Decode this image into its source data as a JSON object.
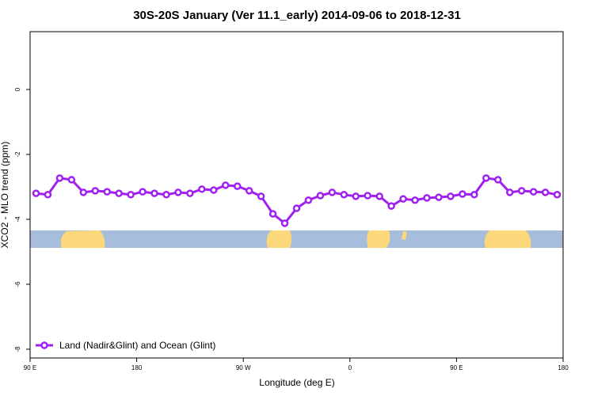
{
  "chart_data": {
    "type": "line",
    "title": "30S-20S January (Ver 11.1_early)   2014-09-06 to 2018-12-31",
    "xlabel": "Longitude (deg E)",
    "ylabel": "XCO2 - MLO trend (ppm)",
    "xlim": [
      90,
      540
    ],
    "ylim": [
      -8.27,
      1.78
    ],
    "xticks": [
      {
        "value": 90,
        "label": "90 E"
      },
      180,
      {
        "value": 270,
        "label": "90 W"
      },
      {
        "value": 360,
        "label": "0"
      },
      {
        "value": 450,
        "label": "90 E"
      },
      {
        "value": 540,
        "label": "180"
      }
    ],
    "yticks": [
      0,
      -2,
      -4,
      -6,
      -8
    ],
    "legend": "bottom-left",
    "x": [
      95,
      105,
      115,
      125,
      135,
      145,
      155,
      165,
      175,
      185,
      195,
      205,
      215,
      225,
      235,
      245,
      255,
      265,
      275,
      285,
      295,
      305,
      315,
      325,
      335,
      345,
      355,
      365,
      375,
      385,
      395,
      405,
      415,
      425,
      435,
      445,
      455,
      465,
      475,
      485,
      495,
      505,
      515,
      525,
      535
    ],
    "series": [
      {
        "name": "Land (Nadir&Glint) and Ocean (Glint)",
        "color": "#a020f0",
        "values": [
          -3.2,
          -3.24,
          -2.73,
          -2.78,
          -3.17,
          -3.12,
          -3.15,
          -3.2,
          -3.24,
          -3.15,
          -3.2,
          -3.24,
          -3.17,
          -3.2,
          -3.07,
          -3.1,
          -2.95,
          -2.98,
          -3.12,
          -3.29,
          -3.83,
          -4.12,
          -3.66,
          -3.41,
          -3.27,
          -3.17,
          -3.24,
          -3.29,
          -3.27,
          -3.29,
          -3.59,
          -3.37,
          -3.41,
          -3.34,
          -3.32,
          -3.29,
          -3.22,
          -3.24,
          -2.73,
          -2.78,
          -3.17,
          -3.12,
          -3.15,
          -3.17,
          -3.24
        ]
      }
    ]
  }
}
